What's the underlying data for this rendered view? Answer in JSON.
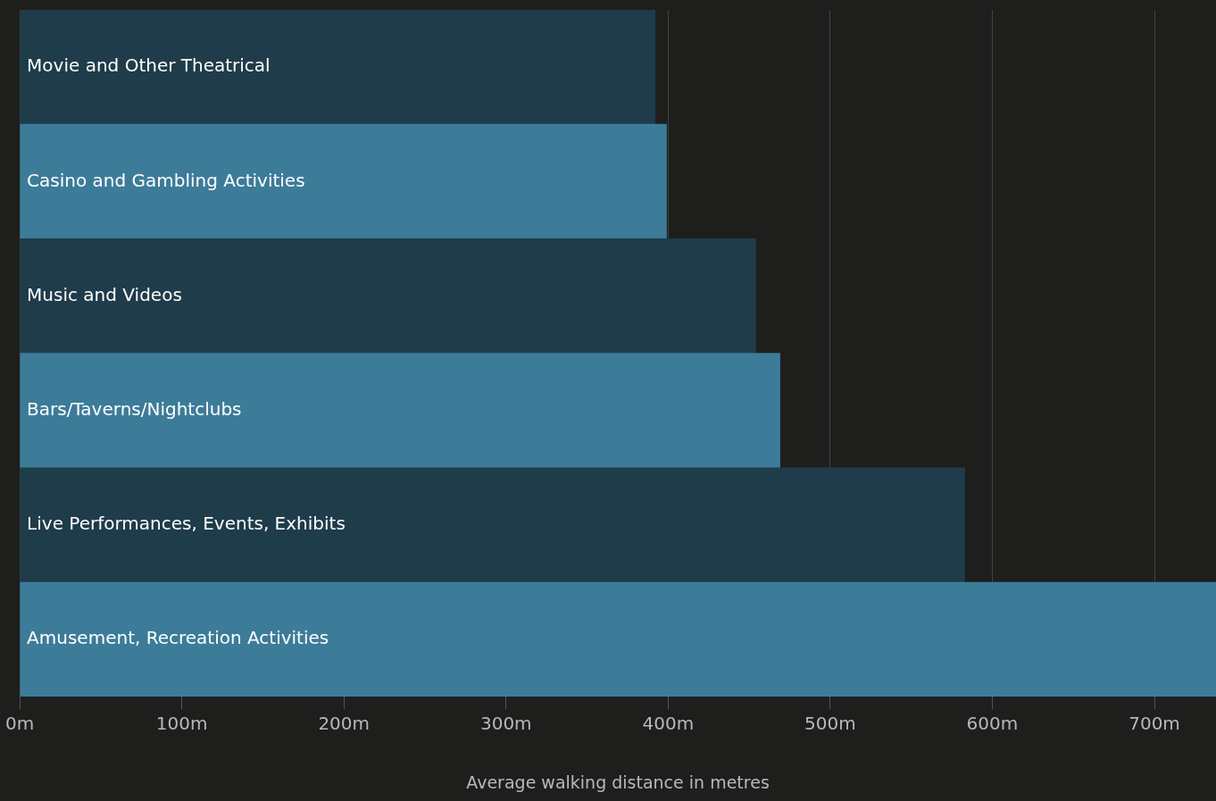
{
  "chart_data": {
    "type": "bar",
    "orientation": "horizontal",
    "xlabel": "Average walking distance in metres",
    "categories": [
      "Movie and Other Theatrical",
      "Casino and Gambling Activities",
      "Music and Videos",
      "Bars/Taverns/Nightclubs",
      "Live Performances, Events, Exhibits",
      "Amusement, Recreation Activities"
    ],
    "values": [
      392,
      399,
      454,
      469,
      583,
      738
    ],
    "colors": [
      "#1f3c4a",
      "#3c7c99",
      "#1f3c4a",
      "#3c7c99",
      "#1f3c4a",
      "#3c7c99"
    ],
    "xlim": [
      0,
      738
    ],
    "xticks": [
      {
        "value": 0,
        "label": "0m"
      },
      {
        "value": 100,
        "label": "100m"
      },
      {
        "value": 200,
        "label": "200m"
      },
      {
        "value": 300,
        "label": "300m"
      },
      {
        "value": 400,
        "label": "400m"
      },
      {
        "value": 500,
        "label": "500m"
      },
      {
        "value": 600,
        "label": "600m"
      },
      {
        "value": 700,
        "label": "700m"
      }
    ],
    "grid": "x"
  }
}
